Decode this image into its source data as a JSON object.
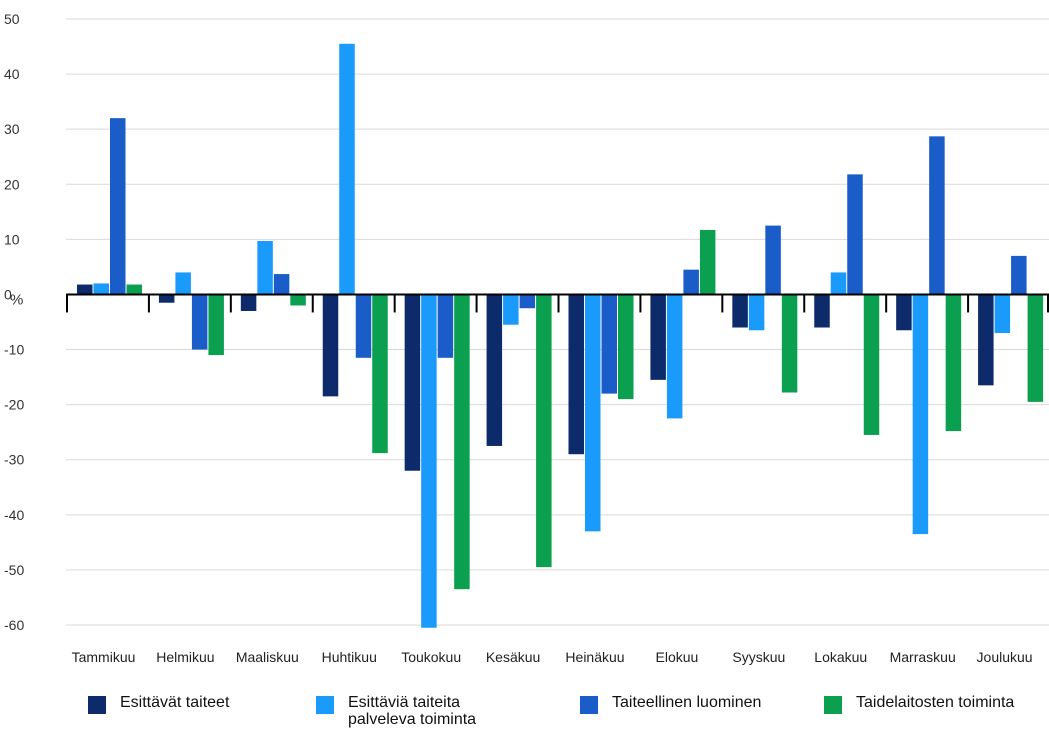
{
  "chart_data": {
    "type": "bar",
    "ylabel": "%",
    "ylim": [
      -60,
      50
    ],
    "yticks": [
      50,
      40,
      30,
      20,
      10,
      0,
      -10,
      -20,
      -30,
      -40,
      -50,
      -60
    ],
    "grid": true,
    "legend_position": "bottom",
    "categories": [
      "Tammikuu",
      "Helmikuu",
      "Maaliskuu",
      "Huhtikuu",
      "Toukokuu",
      "Kesäkuu",
      "Heinäkuu",
      "Elokuu",
      "Syyskuu",
      "Lokakuu",
      "Marraskuu",
      "Joulukuu"
    ],
    "series": [
      {
        "name": "Esittävät taiteet",
        "color": "#0d2a6b",
        "values": [
          1.8,
          -1.5,
          -3.0,
          -18.5,
          -32.0,
          -27.5,
          -29.0,
          -15.5,
          -6.0,
          -6.0,
          -6.5,
          -16.5
        ]
      },
      {
        "name": "Esittäviä taiteita\npalveleva toiminta",
        "color": "#1a9bfc",
        "values": [
          2.0,
          4.0,
          9.7,
          45.5,
          -60.5,
          -5.5,
          -43.0,
          -22.5,
          -6.5,
          4.0,
          -43.5,
          -7.0
        ]
      },
      {
        "name": "Taiteellinen luominen",
        "color": "#1a5cc8",
        "values": [
          32.0,
          -10.0,
          3.7,
          -11.5,
          -11.5,
          -2.5,
          -18.0,
          4.5,
          12.5,
          21.8,
          28.7,
          7.0
        ]
      },
      {
        "name": "Taidelaitosten toiminta",
        "color": "#0aa04f",
        "values": [
          1.8,
          -11.0,
          -2.0,
          -28.8,
          -53.5,
          -49.5,
          -19.0,
          11.7,
          -17.8,
          -25.5,
          -24.8,
          -19.5
        ]
      }
    ]
  }
}
